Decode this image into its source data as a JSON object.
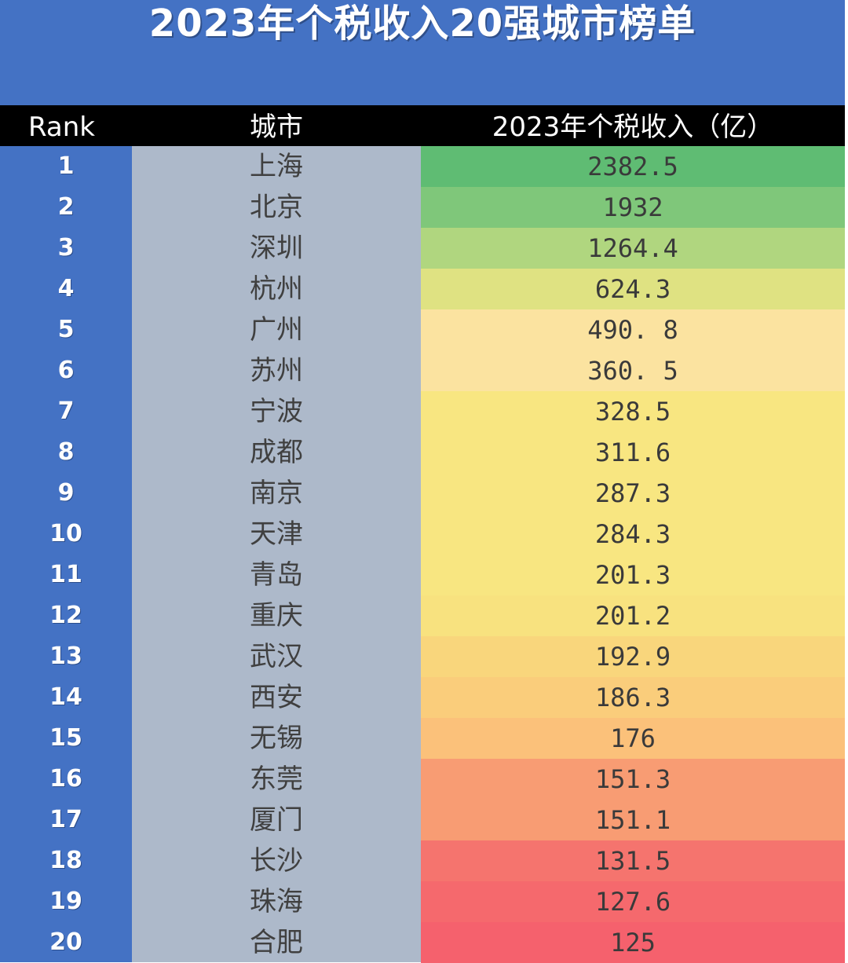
{
  "page": {
    "title": "2023年个税收入20强城市榜单"
  },
  "colors": {
    "background": "#4472c4",
    "header_bg": "#000000",
    "city_column_bg": "#adb9ca",
    "high": "#5fbc73",
    "mid": "#f8e47f",
    "low": "#f5616d"
  },
  "chart_data": {
    "type": "table",
    "title": "2023年个税收入20强城市榜单",
    "columns": [
      "Rank",
      "城市",
      "2023年个税收入（亿）"
    ],
    "rows": [
      {
        "rank": "1",
        "city": "上海",
        "value_text": "2382.5",
        "value": 2382.5,
        "color": "#5fbc73"
      },
      {
        "rank": "2",
        "city": "北京",
        "value_text": "1932",
        "value": 1932,
        "color": "#7fc77a"
      },
      {
        "rank": "3",
        "city": "深圳",
        "value_text": "1264.4",
        "value": 1264.4,
        "color": "#b0d67f"
      },
      {
        "rank": "4",
        "city": "杭州",
        "value_text": "624.3",
        "value": 624.3,
        "color": "#dfe282"
      },
      {
        "rank": "5",
        "city": "广州",
        "value_text": "490. 8",
        "value": 490.8,
        "color": "#fbe3a0"
      },
      {
        "rank": "6",
        "city": "苏州",
        "value_text": "360. 5",
        "value": 360.5,
        "color": "#fbe3a0"
      },
      {
        "rank": "7",
        "city": "宁波",
        "value_text": "328.5",
        "value": 328.5,
        "color": "#f8e681"
      },
      {
        "rank": "8",
        "city": "成都",
        "value_text": "311.6",
        "value": 311.6,
        "color": "#f8e681"
      },
      {
        "rank": "9",
        "city": "南京",
        "value_text": "287.3",
        "value": 287.3,
        "color": "#f8e681"
      },
      {
        "rank": "10",
        "city": "天津",
        "value_text": "284.3",
        "value": 284.3,
        "color": "#f8e681"
      },
      {
        "rank": "11",
        "city": "青岛",
        "value_text": "201.3",
        "value": 201.3,
        "color": "#f8e681"
      },
      {
        "rank": "12",
        "city": "重庆",
        "value_text": "201.2",
        "value": 201.2,
        "color": "#f8e27f"
      },
      {
        "rank": "13",
        "city": "武汉",
        "value_text": "192.9",
        "value": 192.9,
        "color": "#f9d67c"
      },
      {
        "rank": "14",
        "city": "西安",
        "value_text": "186.3",
        "value": 186.3,
        "color": "#facd7b"
      },
      {
        "rank": "15",
        "city": "无锡",
        "value_text": "176",
        "value": 176,
        "color": "#fbc17a"
      },
      {
        "rank": "16",
        "city": "东莞",
        "value_text": "151.3",
        "value": 151.3,
        "color": "#f89c73"
      },
      {
        "rank": "17",
        "city": "厦门",
        "value_text": "151.1",
        "value": 151.1,
        "color": "#f89c73"
      },
      {
        "rank": "18",
        "city": "长沙",
        "value_text": "131.5",
        "value": 131.5,
        "color": "#f5746e"
      },
      {
        "rank": "19",
        "city": "珠海",
        "value_text": "127.6",
        "value": 127.6,
        "color": "#f5696d"
      },
      {
        "rank": "20",
        "city": "合肥",
        "value_text": "125",
        "value": 125,
        "color": "#f5616d"
      }
    ]
  }
}
